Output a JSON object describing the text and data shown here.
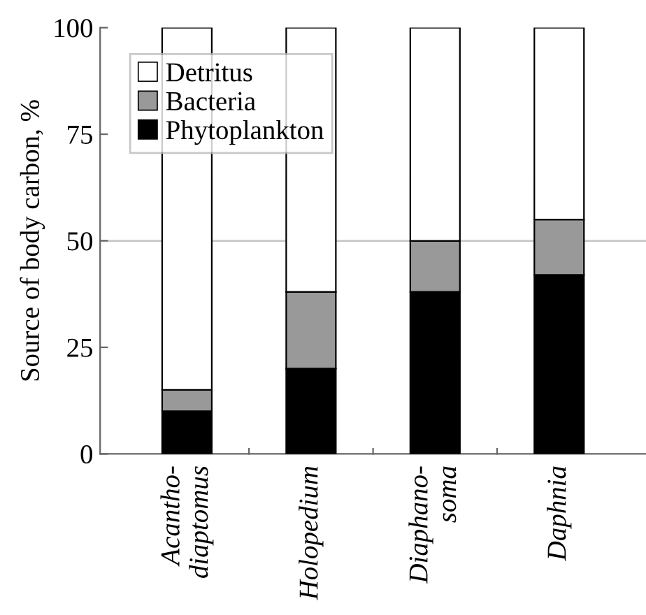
{
  "chart_data": {
    "type": "bar",
    "stacked": true,
    "ylabel": "Source of body carbon, %",
    "categories": [
      "Acantho-\ndiaptomus",
      "Holopedium",
      "Diaphano-\nsoma",
      "Daphnia"
    ],
    "series": [
      {
        "name": "Phytoplankton",
        "color": "#000000",
        "values": [
          10,
          20,
          38,
          42
        ]
      },
      {
        "name": "Bacteria",
        "color": "#999999",
        "values": [
          5,
          18,
          12,
          13
        ]
      },
      {
        "name": "Detritus",
        "color": "#ffffff",
        "values": [
          85,
          62,
          50,
          45
        ]
      }
    ],
    "ylim": [
      0,
      100
    ],
    "yticks": [
      0,
      25,
      50,
      75,
      100
    ],
    "ref_lines": [
      {
        "axis": "y",
        "value": 50,
        "label": null,
        "color": "#c8c8c8"
      }
    ],
    "legend": "top left",
    "grid": false
  }
}
